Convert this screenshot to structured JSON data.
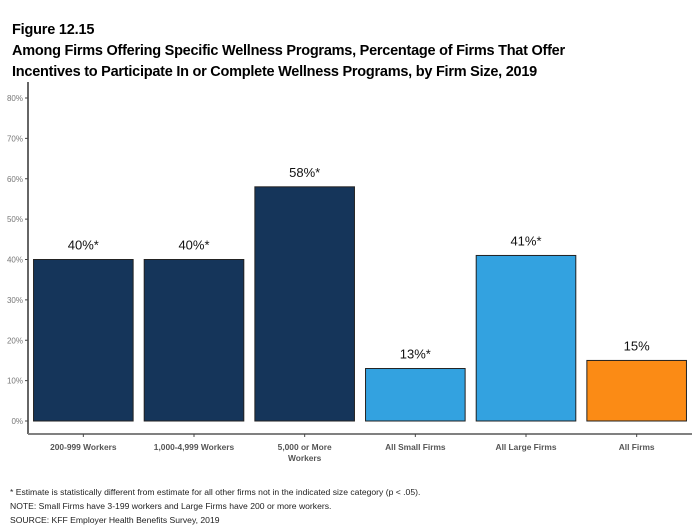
{
  "figure": {
    "number": "Figure 12.15",
    "title_line1": "Among Firms Offering Specific Wellness Programs, Percentage of Firms That Offer",
    "title_line2": "Incentives to Participate In or Complete Wellness Programs, by Firm Size, 2019"
  },
  "chart_data": {
    "type": "bar",
    "title": "Among Firms Offering Specific Wellness Programs, Percentage of Firms That Offer Incentives to Participate In or Complete Wellness Programs, by Firm Size, 2019",
    "xlabel": "",
    "ylabel": "",
    "ylim": [
      0,
      80
    ],
    "yticks": [
      0,
      10,
      20,
      30,
      40,
      50,
      60,
      70,
      80
    ],
    "ytick_labels": [
      "0%",
      "10%",
      "20%",
      "30%",
      "40%",
      "50%",
      "60%",
      "70%",
      "80%"
    ],
    "grid": false,
    "categories": [
      [
        "200-999 Workers"
      ],
      [
        "1,000-4,999 Workers"
      ],
      [
        "5,000 or More",
        "Workers"
      ],
      [
        "All Small Firms"
      ],
      [
        "All Large Firms"
      ],
      [
        "All Firms"
      ]
    ],
    "values": [
      40,
      40,
      58,
      13,
      41,
      15
    ],
    "data_labels": [
      "40%*",
      "40%*",
      "58%*",
      "13%*",
      "41%*",
      "15%"
    ],
    "colors": [
      "#15355a",
      "#15355a",
      "#15355a",
      "#33a2e0",
      "#33a2e0",
      "#fb8b15"
    ]
  },
  "notes": [
    "* Estimate is statistically different from estimate for all other firms not in the indicated size category (p < .05).",
    "NOTE: Small Firms have 3-199 workers and Large Firms have 200 or more workers.",
    "SOURCE: KFF Employer Health Benefits Survey, 2019"
  ]
}
